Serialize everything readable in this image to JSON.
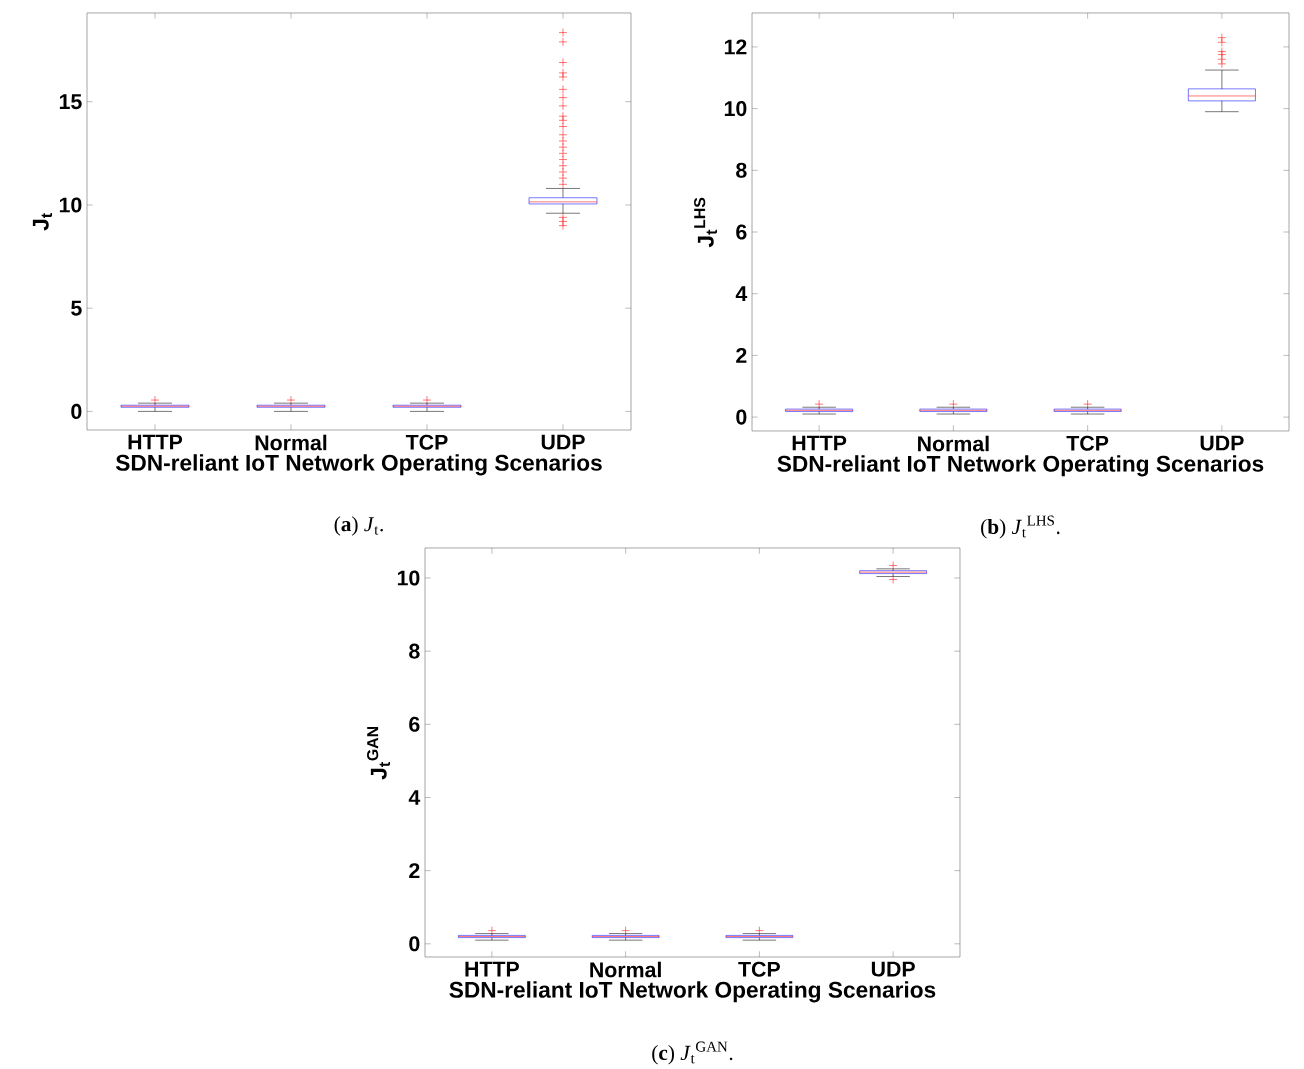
{
  "chart_data": [
    {
      "type": "box",
      "xlabel": "SDN-reliant IoT Network Operating Scenarios",
      "ylabel": "J$_{t}$",
      "categories": [
        "HTTP",
        "Normal",
        "TCP",
        "UDP"
      ],
      "color": "#0000ff",
      "ylim": [
        -0.9,
        19.3
      ],
      "yticks": [
        0,
        5,
        10,
        15
      ],
      "annotations": [
        "(**a**) *J*$_{t}$."
      ],
      "boxes": [
        {
          "low": 0.0,
          "q1": 0.2,
          "median": 0.25,
          "q3": 0.3,
          "high": 0.4,
          "outliers": [
            0.55
          ]
        },
        {
          "low": 0.0,
          "q1": 0.2,
          "median": 0.25,
          "q3": 0.3,
          "high": 0.4,
          "outliers": [
            0.55
          ]
        },
        {
          "low": 0.0,
          "q1": 0.2,
          "median": 0.25,
          "q3": 0.3,
          "high": 0.4,
          "outliers": [
            0.55
          ]
        },
        {
          "low": 9.6,
          "q1": 10.05,
          "median": 10.15,
          "q3": 10.35,
          "high": 10.8,
          "outliers": [
            18.35,
            17.9,
            16.9,
            16.4,
            16.2,
            15.6,
            15.2,
            14.8,
            14.3,
            14.1,
            13.8,
            13.4,
            13.1,
            12.8,
            12.5,
            12.2,
            11.9,
            11.6,
            11.3,
            11.0,
            9.4,
            9.2,
            9.0
          ]
        }
      ]
    },
    {
      "type": "box",
      "xlabel": "SDN-reliant IoT Network Operating Scenarios",
      "ylabel": "J$_{t}$$^{LHS}$",
      "categories": [
        "HTTP",
        "Normal",
        "TCP",
        "UDP"
      ],
      "color": "#0000ff",
      "ylim": [
        -0.45,
        13.1
      ],
      "yticks": [
        0,
        2,
        4,
        6,
        8,
        10,
        12
      ],
      "annotations": [
        "(**b**) *J*$_{t}$$^{LHS}$."
      ],
      "boxes": [
        {
          "low": 0.1,
          "q1": 0.18,
          "median": 0.22,
          "q3": 0.26,
          "high": 0.32,
          "outliers": [
            0.42
          ]
        },
        {
          "low": 0.1,
          "q1": 0.18,
          "median": 0.22,
          "q3": 0.26,
          "high": 0.32,
          "outliers": [
            0.42
          ]
        },
        {
          "low": 0.1,
          "q1": 0.18,
          "median": 0.22,
          "q3": 0.26,
          "high": 0.32,
          "outliers": [
            0.42
          ]
        },
        {
          "low": 9.9,
          "q1": 10.25,
          "median": 10.41,
          "q3": 10.64,
          "high": 11.25,
          "outliers": [
            12.3,
            12.15,
            11.85,
            11.75,
            11.6,
            11.45
          ]
        }
      ]
    },
    {
      "type": "box",
      "xlabel": "SDN-reliant IoT Network Operating Scenarios",
      "ylabel": "J$_{t}$$^{GAN}$",
      "categories": [
        "HTTP",
        "Normal",
        "TCP",
        "UDP"
      ],
      "color": "#0000ff",
      "ylim": [
        -0.36,
        10.82
      ],
      "yticks": [
        0,
        2,
        4,
        6,
        8,
        10
      ],
      "annotations": [
        "(**c**) *J*$_{t}$$^{GAN}$."
      ],
      "boxes": [
        {
          "low": 0.1,
          "q1": 0.17,
          "median": 0.2,
          "q3": 0.23,
          "high": 0.28,
          "outliers": [
            0.36
          ]
        },
        {
          "low": 0.1,
          "q1": 0.17,
          "median": 0.2,
          "q3": 0.23,
          "high": 0.28,
          "outliers": [
            0.36
          ]
        },
        {
          "low": 0.1,
          "q1": 0.17,
          "median": 0.2,
          "q3": 0.23,
          "high": 0.28,
          "outliers": [
            0.36
          ]
        },
        {
          "low": 10.04,
          "q1": 10.12,
          "median": 10.16,
          "q3": 10.2,
          "high": 10.25,
          "outliers": [
            10.34,
            9.96
          ]
        }
      ]
    }
  ]
}
